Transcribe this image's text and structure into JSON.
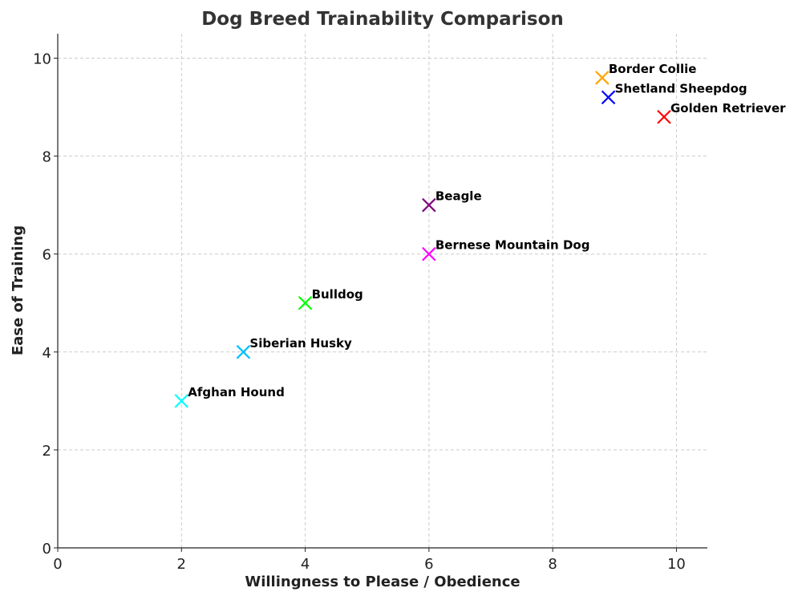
{
  "chart_data": {
    "type": "scatter",
    "title": "Dog Breed Trainability Comparison",
    "xlabel": "Willingness to Please / Obedience",
    "ylabel": "Ease of Training",
    "xlim": [
      0,
      10.5
    ],
    "ylim": [
      0,
      10.5
    ],
    "xticks": [
      0,
      2,
      4,
      6,
      8,
      10
    ],
    "yticks": [
      0,
      2,
      4,
      6,
      8,
      10
    ],
    "grid": true,
    "marker": "x",
    "points": [
      {
        "label": "Border Collie",
        "x": 8.8,
        "y": 9.6,
        "color": "#ffa500"
      },
      {
        "label": "Shetland Sheepdog",
        "x": 8.9,
        "y": 9.2,
        "color": "#0000ff"
      },
      {
        "label": "Golden Retriever",
        "x": 9.8,
        "y": 8.8,
        "color": "#ff0000"
      },
      {
        "label": "Beagle",
        "x": 6,
        "y": 7,
        "color": "#800080"
      },
      {
        "label": "Bernese Mountain Dog",
        "x": 6,
        "y": 6,
        "color": "#ff00ff"
      },
      {
        "label": "Bulldog",
        "x": 4,
        "y": 5,
        "color": "#00ff00"
      },
      {
        "label": "Siberian Husky",
        "x": 3,
        "y": 4,
        "color": "#00bfff"
      },
      {
        "label": "Afghan Hound",
        "x": 2,
        "y": 3,
        "color": "#00ffff"
      }
    ]
  }
}
